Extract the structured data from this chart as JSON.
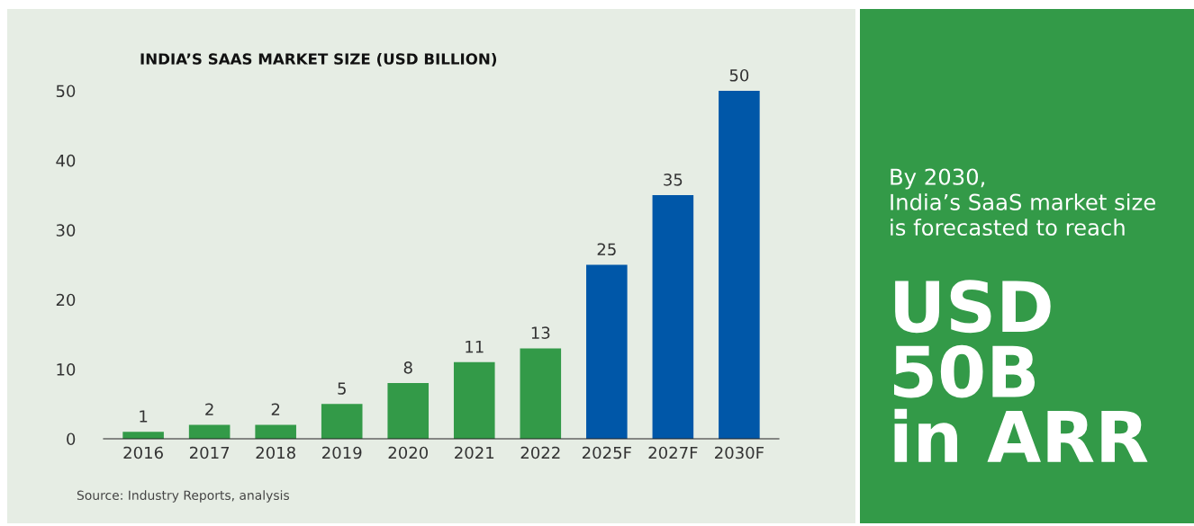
{
  "chart_data": [
    {
      "type": "bar",
      "title": "INDIA’S SAAS MARKET SIZE (USD BILLION)",
      "categories": [
        "2016",
        "2017",
        "2018",
        "2019",
        "2020",
        "2021",
        "2022",
        "2025F",
        "2027F",
        "2030F"
      ],
      "values": [
        1,
        2,
        2,
        5,
        8,
        11,
        13,
        25,
        35,
        50
      ],
      "colors": [
        "#339a48",
        "#339a48",
        "#339a48",
        "#339a48",
        "#339a48",
        "#339a48",
        "#339a48",
        "#0057a8",
        "#0057a8",
        "#0057a8"
      ],
      "ylim": [
        0,
        50
      ],
      "yticks": [
        0,
        10,
        20,
        30,
        40,
        50
      ],
      "grid": false,
      "data_labels": true,
      "annotations": [
        "Source: Industry Reports, analysis"
      ]
    },
    {
      "type": "other",
      "annotations": [
        "By 2030,\nIndia’s SaaS market size\nis forecasted to reach",
        "USD\n50B\nin ARR"
      ]
    }
  ]
}
